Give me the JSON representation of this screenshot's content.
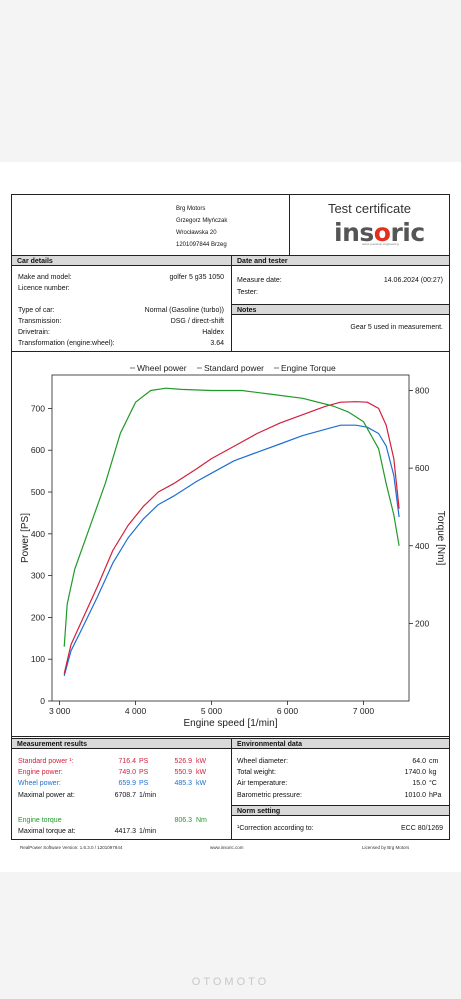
{
  "header": {
    "company": [
      "Brg Motors",
      "Grzegorz Młyńczak",
      "Wrocławska 20",
      "1201097844 Brzeg"
    ],
    "certificate_title": "Test certificate",
    "brand_parts": [
      "ins",
      "o",
      "ric"
    ],
    "brand_tagline": "swiss precision engineering"
  },
  "car_details": {
    "title": "Car details",
    "rows": [
      {
        "label": "Make and model:",
        "value": "golfer 5 g35 1050"
      },
      {
        "label": "Licence number:",
        "value": ""
      },
      {
        "label": "Type of car:",
        "value": "Normal (Gasoline (turbo))"
      },
      {
        "label": "Transmission:",
        "value": "DSG / direct-shift"
      },
      {
        "label": "Drivetrain:",
        "value": "Haldex"
      },
      {
        "label": "Transformation (engine:wheel):",
        "value": "3.64"
      }
    ]
  },
  "date_tester": {
    "title": "Date and tester",
    "measure_date_label": "Measure date:",
    "measure_date_value": "14.06.2024 (00:27)",
    "tester_label": "Tester:"
  },
  "notes": {
    "title": "Notes",
    "text": "Gear 5 used in measurement."
  },
  "chart_data": {
    "type": "line",
    "legend": [
      "Wheel power",
      "Standard power",
      "Engine Torque"
    ],
    "legend_position": "top",
    "xlabel": "Engine speed [1/min]",
    "ylabel": "Power [PS]",
    "y2label": "Torque [Nm]",
    "xlim": [
      2900,
      7600
    ],
    "ylim": [
      0,
      780
    ],
    "y2lim": [
      0,
      840
    ],
    "x_ticks": [
      "3 000",
      "4 000",
      "5 000",
      "6 000",
      "7 000"
    ],
    "x_tick_values": [
      3000,
      4000,
      5000,
      6000,
      7000
    ],
    "y_ticks": [
      "0",
      "100",
      "200",
      "300",
      "400",
      "500",
      "600",
      "700"
    ],
    "y_tick_values": [
      0,
      100,
      200,
      300,
      400,
      500,
      600,
      700
    ],
    "y2_ticks": [
      "200",
      "400",
      "600",
      "800"
    ],
    "y2_tick_values": [
      200,
      400,
      600,
      800
    ],
    "colors": {
      "Wheel power": "#1f6fd0",
      "Standard power": "#d21f3c",
      "Engine Torque": "#1f9a2a"
    },
    "series": [
      {
        "name": "Wheel power",
        "axis": "left",
        "x": [
          3060,
          3150,
          3300,
          3500,
          3700,
          3900,
          4100,
          4300,
          4500,
          4800,
          5000,
          5300,
          5600,
          5900,
          6200,
          6500,
          6700,
          6900,
          7050,
          7200,
          7300,
          7400,
          7470
        ],
        "y": [
          60,
          120,
          175,
          250,
          330,
          390,
          435,
          470,
          490,
          525,
          545,
          575,
          595,
          615,
          635,
          650,
          660,
          660,
          655,
          640,
          610,
          540,
          440
        ]
      },
      {
        "name": "Standard power",
        "axis": "left",
        "x": [
          3060,
          3150,
          3300,
          3500,
          3700,
          3900,
          4100,
          4300,
          4500,
          4800,
          5000,
          5300,
          5600,
          5900,
          6200,
          6500,
          6700,
          6900,
          7050,
          7200,
          7300,
          7400,
          7470
        ],
        "y": [
          65,
          135,
          195,
          275,
          360,
          420,
          465,
          500,
          520,
          555,
          580,
          610,
          640,
          665,
          685,
          705,
          715,
          716,
          715,
          700,
          660,
          580,
          460
        ]
      },
      {
        "name": "Engine Torque",
        "axis": "right",
        "x": [
          3060,
          3100,
          3200,
          3400,
          3600,
          3800,
          4000,
          4200,
          4400,
          4600,
          5000,
          5400,
          5800,
          6200,
          6600,
          6800,
          7000,
          7200,
          7300,
          7400,
          7470
        ],
        "y": [
          140,
          250,
          340,
          450,
          560,
          690,
          770,
          800,
          806,
          803,
          800,
          800,
          790,
          780,
          760,
          745,
          720,
          650,
          560,
          480,
          400
        ]
      }
    ]
  },
  "measurement_results": {
    "title": "Measurement results",
    "rows": [
      {
        "label": "Standard power ¹:",
        "v1": "716.4",
        "u1": "PS",
        "v2": "526.9",
        "u2": "kW",
        "color": "#d21f3c"
      },
      {
        "label": "Engine power:",
        "v1": "749.0",
        "u1": "PS",
        "v2": "550.9",
        "u2": "kW",
        "color": "#d21f3c"
      },
      {
        "label": "Wheel power:",
        "v1": "659.9",
        "u1": "PS",
        "v2": "485.3",
        "u2": "kW",
        "color": "#1f6fd0"
      },
      {
        "label": "Maximal power at:",
        "v1": "6708.7",
        "u1": "1/min",
        "v2": "",
        "u2": "",
        "color": "#111111"
      },
      {
        "label": "Engine torque",
        "v1": "",
        "u1": "",
        "v2": "806.3",
        "u2": "Nm",
        "color": "#1f9a2a"
      },
      {
        "label": "Maximal torque at:",
        "v1": "4417.3",
        "u1": "1/min",
        "v2": "",
        "u2": "",
        "color": "#111111"
      }
    ]
  },
  "environmental": {
    "title": "Environmental data",
    "rows": [
      {
        "label": "Wheel diameter:",
        "value": "64.0",
        "unit": "cm"
      },
      {
        "label": "Total weight:",
        "value": "1740.0",
        "unit": "kg"
      },
      {
        "label": "Air temperature:",
        "value": "15.0",
        "unit": "°C"
      },
      {
        "label": "Barometric pressure:",
        "value": "1010.0",
        "unit": "hPa"
      }
    ]
  },
  "norm_setting": {
    "title": "Norm setting",
    "label": "¹Correction according to:",
    "value": "ECC 80/1269"
  },
  "footer": {
    "software": "RealPower Software Version: 1.6.3.0 / 1201097844",
    "website": "www.insoric.com",
    "licensed": "Licensed by Brg Motors"
  },
  "watermark": "OTOMOTO"
}
